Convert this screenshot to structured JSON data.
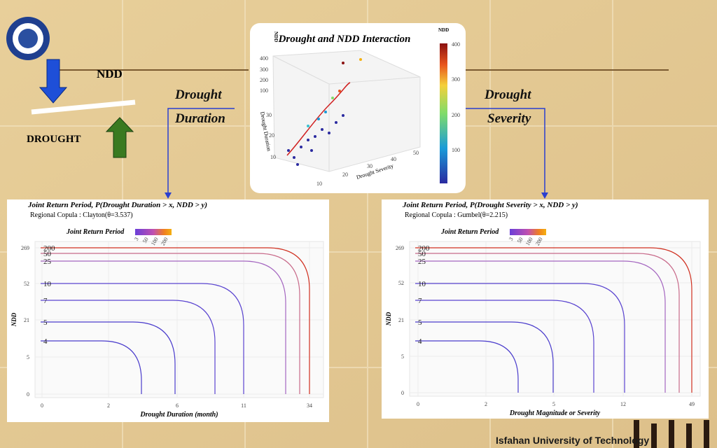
{
  "slide": {
    "ndd_label": "NDD",
    "drought_label": "DROUGHT",
    "left_link": [
      "Drought",
      "Duration"
    ],
    "right_link": [
      "Drought",
      "Severity"
    ],
    "footer": "Isfahan University of Technology"
  },
  "center_plot": {
    "title": "Drought and NDD Interaction",
    "colorbar_title": "NDD",
    "colorbar_ticks": [
      "400",
      "300",
      "200",
      "100"
    ],
    "z_label": "NDD",
    "z_ticks": [
      "400",
      "300",
      "200",
      "100"
    ],
    "y_label": "Drought Duration",
    "y_ticks": [
      "30",
      "20",
      "10"
    ],
    "x_label": "Drought Severity",
    "x_ticks": [
      "10",
      "20",
      "30",
      "40",
      "50"
    ]
  },
  "panels": [
    {
      "title": "Joint Return Period, P(Drought Duration > x, NDD > y)",
      "subtitle": "Regional Copula :  Clayton(θ=3.537)",
      "legend_title": "Joint Return Period",
      "legend_ticks": [
        "3",
        "50",
        "100",
        "200"
      ],
      "y_label": "NDD",
      "y_ticks": [
        "269",
        "52",
        "21",
        "5",
        "0"
      ],
      "x_label": "Drought Duration (month)",
      "x_ticks": [
        "0",
        "2",
        "6",
        "11",
        "34"
      ],
      "curves": [
        "200",
        "50",
        "25",
        "10",
        "7",
        "5",
        "4"
      ]
    },
    {
      "title": "Joint Return Period, P(Drought Severity > x, NDD > y)",
      "subtitle": "Regional Copula :  Gumbel(θ=2.215)",
      "legend_title": "Joint Return Period",
      "legend_ticks": [
        "3",
        "50",
        "100",
        "200"
      ],
      "y_label": "NDD",
      "y_ticks": [
        "269",
        "52",
        "21",
        "5",
        "0"
      ],
      "x_label": "Drought Magnitude or Severity",
      "x_ticks": [
        "0",
        "2",
        "5",
        "12",
        "49"
      ],
      "curves": [
        "200",
        "50",
        "25",
        "10",
        "7",
        "5",
        "4"
      ]
    }
  ]
}
